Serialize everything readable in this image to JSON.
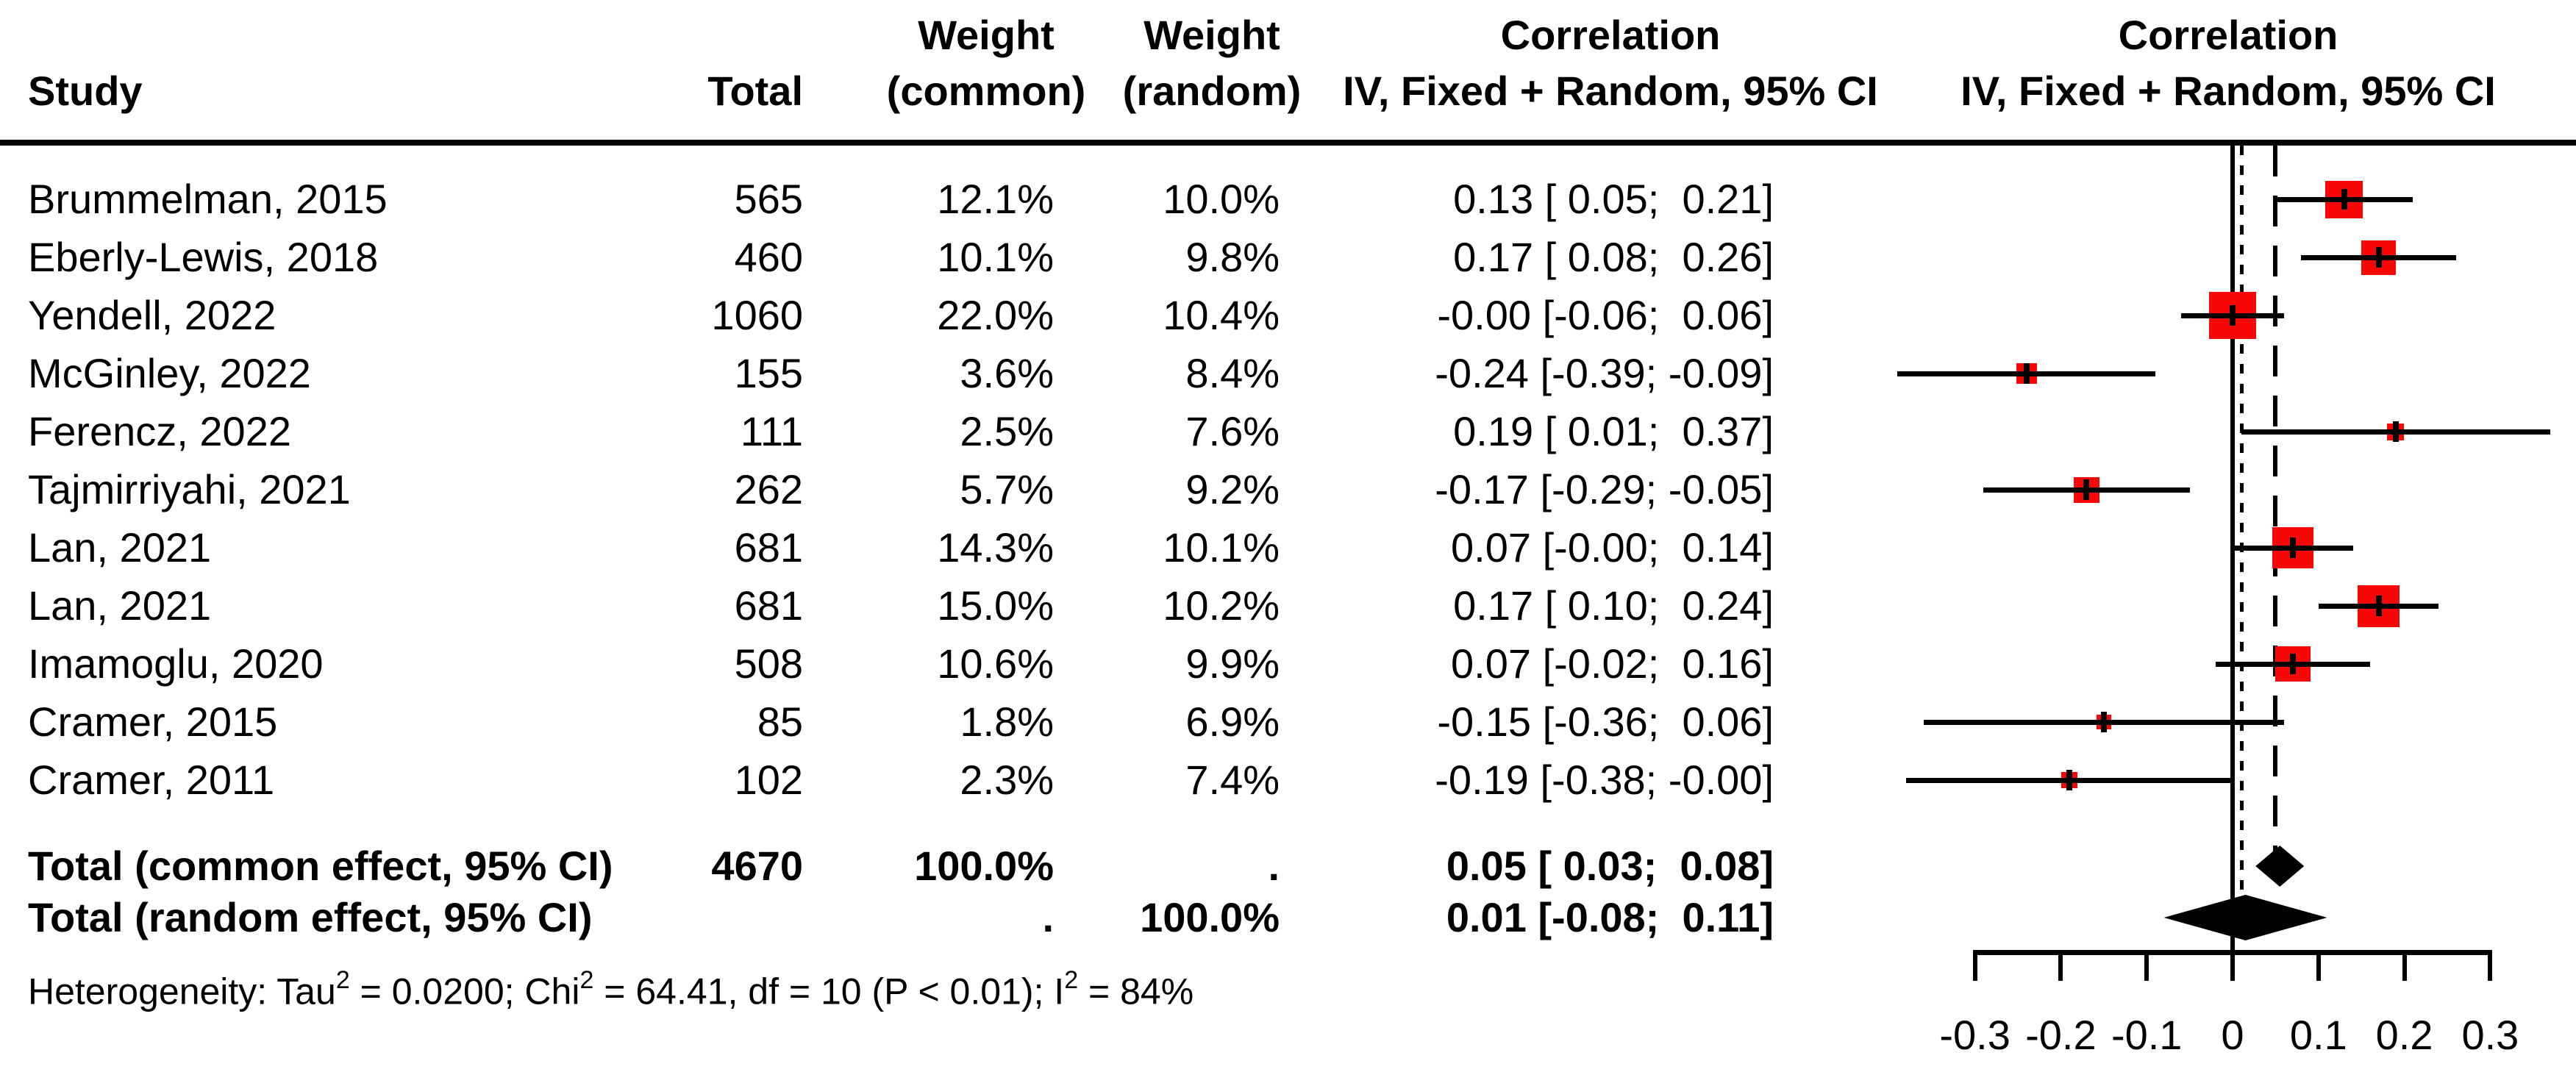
{
  "figure": {
    "background": "#ffffff",
    "text_color": "#000000"
  },
  "columns": {
    "study_label": "Study",
    "total_label": "Total",
    "weight_common_top": "Weight",
    "weight_common_sub": "(common)",
    "weight_random_top": "Weight",
    "weight_random_sub": "(random)",
    "correlation_top": "Correlation",
    "correlation_sub": "IV, Fixed + Random, 95% CI",
    "plot_header_top": "Correlation",
    "plot_header_sub": "IV, Fixed + Random, 95% CI"
  },
  "chart_data": {
    "type": "forest",
    "effect_measure": "Correlation",
    "square_color": "#f90606",
    "diamond_color": "#000000",
    "xlabel_ticks": [
      "-0.3",
      "-0.2",
      "-0.1",
      "0",
      "0.1",
      "0.2",
      "0.3"
    ],
    "tick_values": [
      -0.3,
      -0.2,
      -0.1,
      0,
      0.1,
      0.2,
      0.3
    ],
    "ref_lines": {
      "null_value": 0,
      "common_effect": 0.05,
      "random_effect": 0.01
    },
    "studies": [
      {
        "label": "Brummelman, 2015",
        "total": "565",
        "weight_common": "12.1%",
        "weight_random": "10.0%",
        "ci_text": "0.13 [ 0.05;  0.21]",
        "est": 0.13,
        "low": 0.05,
        "high": 0.21
      },
      {
        "label": "Eberly-Lewis, 2018",
        "total": "460",
        "weight_common": "10.1%",
        "weight_random": "9.8%",
        "ci_text": "0.17 [ 0.08;  0.26]",
        "est": 0.17,
        "low": 0.08,
        "high": 0.26
      },
      {
        "label": "Yendell, 2022",
        "total": "1060",
        "weight_common": "22.0%",
        "weight_random": "10.4%",
        "ci_text": "-0.00 [-0.06;  0.06]",
        "est": -0.0,
        "low": -0.06,
        "high": 0.06
      },
      {
        "label": "McGinley, 2022",
        "total": "155",
        "weight_common": "3.6%",
        "weight_random": "8.4%",
        "ci_text": "-0.24 [-0.39; -0.09]",
        "est": -0.24,
        "low": -0.39,
        "high": -0.09
      },
      {
        "label": "Ferencz, 2022",
        "total": "111",
        "weight_common": "2.5%",
        "weight_random": "7.6%",
        "ci_text": "0.19 [ 0.01;  0.37]",
        "est": 0.19,
        "low": 0.01,
        "high": 0.37
      },
      {
        "label": "Tajmirriyahi, 2021",
        "total": "262",
        "weight_common": "5.7%",
        "weight_random": "9.2%",
        "ci_text": "-0.17 [-0.29; -0.05]",
        "est": -0.17,
        "low": -0.29,
        "high": -0.05
      },
      {
        "label": "Lan, 2021",
        "total": "681",
        "weight_common": "14.3%",
        "weight_random": "10.1%",
        "ci_text": "0.07 [-0.00;  0.14]",
        "est": 0.07,
        "low": -0.0,
        "high": 0.14
      },
      {
        "label": "Lan, 2021",
        "total": "681",
        "weight_common": "15.0%",
        "weight_random": "10.2%",
        "ci_text": "0.17 [ 0.10;  0.24]",
        "est": 0.17,
        "low": 0.1,
        "high": 0.24
      },
      {
        "label": "Imamoglu, 2020",
        "total": "508",
        "weight_common": "10.6%",
        "weight_random": "9.9%",
        "ci_text": "0.07 [-0.02;  0.16]",
        "est": 0.07,
        "low": -0.02,
        "high": 0.16
      },
      {
        "label": "Cramer, 2015",
        "total": "85",
        "weight_common": "1.8%",
        "weight_random": "6.9%",
        "ci_text": "-0.15 [-0.36;  0.06]",
        "est": -0.15,
        "low": -0.36,
        "high": 0.06
      },
      {
        "label": "Cramer, 2011",
        "total": "102",
        "weight_common": "2.3%",
        "weight_random": "7.4%",
        "ci_text": "-0.19 [-0.38; -0.00]",
        "est": -0.19,
        "low": -0.38,
        "high": -0.0
      }
    ],
    "totals": [
      {
        "label": "Total (common effect, 95% CI)",
        "total": "4670",
        "weight_common": "100.0%",
        "weight_random": ".",
        "ci_text": "0.05 [ 0.03;  0.08]",
        "est": 0.05,
        "low": 0.03,
        "high": 0.08,
        "kind": "common"
      },
      {
        "label": "Total (random effect, 95% CI)",
        "total": "",
        "weight_common": ".",
        "weight_random": "100.0%",
        "ci_text": "0.01 [-0.08;  0.11]",
        "est": 0.01,
        "low": -0.08,
        "high": 0.11,
        "kind": "random"
      }
    ],
    "heterogeneity_parts": [
      {
        "t": "Heterogeneity: Tau"
      },
      {
        "t": "2",
        "sup": true
      },
      {
        "t": " = 0.0200; Chi"
      },
      {
        "t": "2",
        "sup": true
      },
      {
        "t": " = 64.41, df = 10 (P < 0.01); I"
      },
      {
        "t": "2",
        "sup": true
      },
      {
        "t": " = 84%"
      }
    ]
  }
}
